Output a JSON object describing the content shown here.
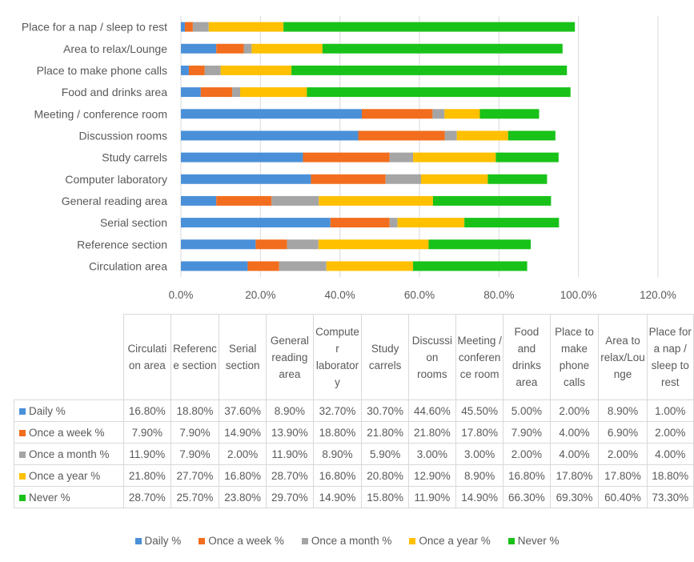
{
  "chart_data": {
    "type": "bar",
    "orientation": "horizontal",
    "stacked": true,
    "categories": [
      "Circulation area",
      "Reference section",
      "Serial section",
      "General reading area",
      "Computer laboratory",
      "Study carrels",
      "Discussion rooms",
      "Meeting / conference room",
      "Food and drinks area",
      "Place to make phone calls",
      "Area to relax/Lounge",
      "Place for a nap / sleep to rest"
    ],
    "series": [
      {
        "name": "Daily %",
        "color": "#4a90d9",
        "values": [
          16.8,
          18.8,
          37.6,
          8.9,
          32.7,
          30.7,
          44.6,
          45.5,
          5.0,
          2.0,
          8.9,
          1.0
        ]
      },
      {
        "name": "Once a week %",
        "color": "#f26d1d",
        "values": [
          7.9,
          7.9,
          14.9,
          13.9,
          18.8,
          21.8,
          21.8,
          17.8,
          7.9,
          4.0,
          6.9,
          2.0
        ]
      },
      {
        "name": "Once a month %",
        "color": "#a5a5a5",
        "values": [
          11.9,
          7.9,
          2.0,
          11.9,
          8.9,
          5.9,
          3.0,
          3.0,
          2.0,
          4.0,
          2.0,
          4.0
        ]
      },
      {
        "name": "Once a year %",
        "color": "#ffc000",
        "values": [
          21.8,
          27.7,
          16.8,
          28.7,
          16.8,
          20.8,
          12.9,
          8.9,
          16.8,
          17.8,
          17.8,
          18.8
        ]
      },
      {
        "name": "Never %",
        "color": "#19c219",
        "values": [
          28.7,
          25.7,
          23.8,
          29.7,
          14.9,
          15.8,
          11.9,
          14.9,
          66.3,
          69.3,
          60.4,
          73.3
        ]
      }
    ],
    "xlim": [
      0,
      120
    ],
    "xticks": [
      "0.0%",
      "20.0%",
      "40.0%",
      "60.0%",
      "80.0%",
      "100.0%",
      "120.0%"
    ],
    "grid": true,
    "legend_placement": "bottom",
    "data_table": {
      "cells": [
        [
          "16.80%",
          "18.80%",
          "37.60%",
          "8.90%",
          "32.70%",
          "30.70%",
          "44.60%",
          "45.50%",
          "5.00%",
          "2.00%",
          "8.90%",
          "1.00%"
        ],
        [
          "7.90%",
          "7.90%",
          "14.90%",
          "13.90%",
          "18.80%",
          "21.80%",
          "21.80%",
          "17.80%",
          "7.90%",
          "4.00%",
          "6.90%",
          "2.00%"
        ],
        [
          "11.90%",
          "7.90%",
          "2.00%",
          "11.90%",
          "8.90%",
          "5.90%",
          "3.00%",
          "3.00%",
          "2.00%",
          "4.00%",
          "2.00%",
          "4.00%"
        ],
        [
          "21.80%",
          "27.70%",
          "16.80%",
          "28.70%",
          "16.80%",
          "20.80%",
          "12.90%",
          "8.90%",
          "16.80%",
          "17.80%",
          "17.80%",
          "18.80%"
        ],
        [
          "28.70%",
          "25.70%",
          "23.80%",
          "29.70%",
          "14.90%",
          "15.80%",
          "11.90%",
          "14.90%",
          "66.30%",
          "69.30%",
          "60.40%",
          "73.30%"
        ]
      ]
    }
  }
}
